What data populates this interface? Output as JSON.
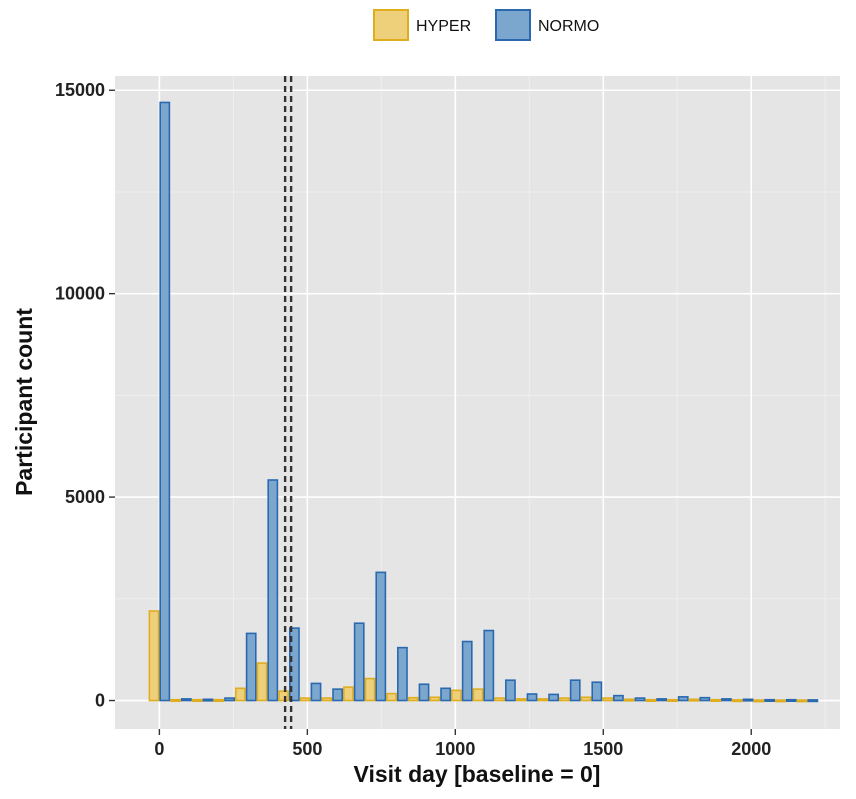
{
  "chart_data": {
    "type": "bar",
    "xlabel": "Visit day [baseline = 0]",
    "ylabel": "Participant count",
    "xlim": [
      -150,
      2300
    ],
    "ylim": [
      -700,
      15350
    ],
    "x_ticks": [
      0,
      500,
      1000,
      1500,
      2000
    ],
    "y_ticks": [
      0,
      5000,
      10000,
      15000
    ],
    "bin_width": 73,
    "grid": true,
    "legend_position": "top",
    "reference_line": {
      "x": 435,
      "style": "dashed"
    },
    "x": [
      0,
      73,
      146,
      219,
      292,
      365,
      438,
      511,
      584,
      657,
      730,
      803,
      876,
      949,
      1022,
      1095,
      1168,
      1241,
      1314,
      1387,
      1460,
      1533,
      1606,
      1679,
      1752,
      1825,
      1898,
      1971,
      2044,
      2117,
      2190
    ],
    "series": [
      {
        "name": "HYPER",
        "fill": "#EECF7A",
        "stroke": "#E0AD1E",
        "values": [
          2200,
          20,
          20,
          20,
          300,
          920,
          230,
          60,
          60,
          330,
          540,
          170,
          70,
          80,
          250,
          280,
          60,
          40,
          40,
          60,
          80,
          60,
          30,
          20,
          20,
          30,
          20,
          15,
          10,
          10,
          10
        ]
      },
      {
        "name": "NORMO",
        "fill": "#7BA7CF",
        "stroke": "#2A69B0",
        "values": [
          14700,
          40,
          30,
          60,
          1650,
          5420,
          1780,
          420,
          280,
          1900,
          3150,
          1300,
          400,
          300,
          1450,
          1720,
          500,
          160,
          150,
          500,
          450,
          120,
          60,
          40,
          90,
          70,
          40,
          30,
          20,
          20,
          15
        ]
      }
    ]
  },
  "colors": {
    "panel_bg": "#E5E5E5",
    "grid_major": "#FFFFFF",
    "grid_minor": "#EFEFEF",
    "ref_line": "#333333"
  }
}
